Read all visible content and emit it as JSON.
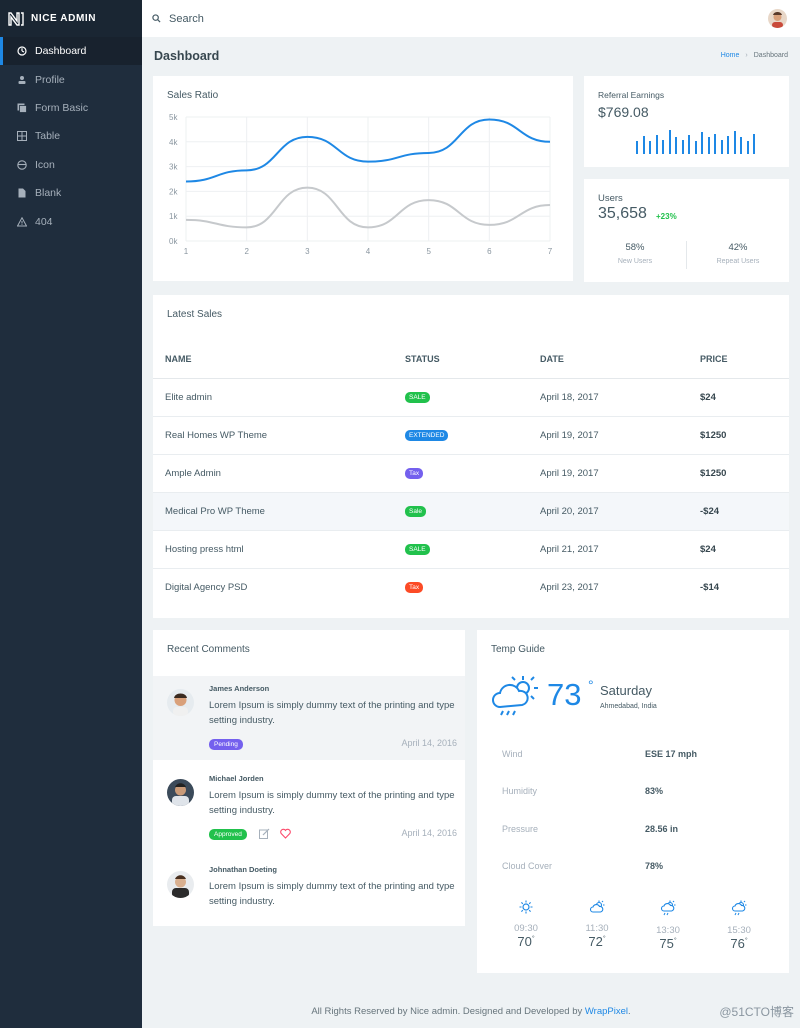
{
  "brand": {
    "name": "NICE ADMIN"
  },
  "sidebar": {
    "items": [
      {
        "label": "Dashboard",
        "icon": "dashboard-icon"
      },
      {
        "label": "Profile",
        "icon": "profile-icon"
      },
      {
        "label": "Form Basic",
        "icon": "form-icon"
      },
      {
        "label": "Table",
        "icon": "table-icon"
      },
      {
        "label": "Icon",
        "icon": "smile-icon"
      },
      {
        "label": "Blank",
        "icon": "document-icon"
      },
      {
        "label": "404",
        "icon": "warning-icon"
      }
    ]
  },
  "topbar": {
    "search_placeholder": "Search"
  },
  "page": {
    "title": "Dashboard",
    "breadcrumb_home": "Home",
    "breadcrumb_current": "Dashboard"
  },
  "sales_ratio": {
    "title": "Sales Ratio"
  },
  "chart_data": {
    "type": "line",
    "x": [
      1,
      2,
      3,
      4,
      5,
      6,
      7
    ],
    "ylim": [
      0,
      5000
    ],
    "y_ticks": [
      "0k",
      "1k",
      "2k",
      "3k",
      "4k",
      "5k"
    ],
    "grid": true,
    "series": [
      {
        "values": [
          2400,
          2850,
          4200,
          3200,
          3550,
          4900,
          4000
        ],
        "color": "#1e88e5"
      },
      {
        "values": [
          850,
          550,
          2150,
          550,
          1650,
          650,
          1450
        ],
        "color": "#c6c9cc"
      }
    ]
  },
  "referral": {
    "label": "Referral Earnings",
    "value": "$769.08",
    "bars": [
      0.55,
      0.75,
      0.55,
      0.8,
      0.6,
      1.0,
      0.7,
      0.6,
      0.8,
      0.55,
      0.9,
      0.7,
      0.85,
      0.6,
      0.75,
      0.95,
      0.7,
      0.55,
      0.85
    ]
  },
  "users": {
    "label": "Users",
    "value": "35,658",
    "delta": "+23%",
    "new_pct": "58%",
    "new_label": "New Users",
    "repeat_pct": "42%",
    "repeat_label": "Repeat Users"
  },
  "latest_sales": {
    "title": "Latest Sales",
    "columns": [
      "NAME",
      "STATUS",
      "DATE",
      "PRICE"
    ],
    "rows": [
      {
        "name": "Elite admin",
        "status": "SALE",
        "status_color": "#21c14c",
        "date": "April 18, 2017",
        "price": "$24"
      },
      {
        "name": "Real Homes WP Theme",
        "status": "EXTENDED",
        "status_color": "#1e88e5",
        "date": "April 19, 2017",
        "price": "$1250"
      },
      {
        "name": "Ample Admin",
        "status": "Tax",
        "status_color": "#7460ee",
        "date": "April 19, 2017",
        "price": "$1250"
      },
      {
        "name": "Medical Pro WP Theme",
        "status": "Sale",
        "status_color": "#21c14c",
        "date": "April 20, 2017",
        "price": "-$24"
      },
      {
        "name": "Hosting press html",
        "status": "SALE",
        "status_color": "#21c14c",
        "date": "April 21, 2017",
        "price": "$24"
      },
      {
        "name": "Digital Agency PSD",
        "status": "Tax",
        "status_color": "#fc4b26",
        "date": "April 23, 2017",
        "price": "-$14"
      }
    ]
  },
  "comments": {
    "title": "Recent Comments",
    "items": [
      {
        "name": "James Anderson",
        "text": "Lorem Ipsum is simply dummy text of the printing and type setting industry.",
        "tag": "Pending",
        "tag_color": "#7460ee",
        "date": "April 14, 2016"
      },
      {
        "name": "Michael Jorden",
        "text": "Lorem Ipsum is simply dummy text of the printing and type setting industry.",
        "tag": "Approved",
        "tag_color": "#21c14c",
        "date": "April 14, 2016"
      },
      {
        "name": "Johnathan Doeting",
        "text": "Lorem Ipsum is simply dummy text of the printing and type setting industry."
      }
    ]
  },
  "weather": {
    "title": "Temp Guide",
    "temp": "73",
    "deg": "°",
    "day": "Saturday",
    "location": "Ahmedabad, India",
    "details": [
      {
        "key": "Wind",
        "value": "ESE 17 mph"
      },
      {
        "key": "Humidity",
        "value": "83%"
      },
      {
        "key": "Pressure",
        "value": "28.56 in"
      },
      {
        "key": "Cloud Cover",
        "value": "78%"
      }
    ],
    "forecast": [
      {
        "time": "09:30",
        "temp": "70",
        "icon": "sun-icon"
      },
      {
        "time": "11:30",
        "temp": "72",
        "icon": "cloud-sun-icon"
      },
      {
        "time": "13:30",
        "temp": "75",
        "icon": "rain-sun-icon"
      },
      {
        "time": "15:30",
        "temp": "76",
        "icon": "rain-sun-icon"
      }
    ]
  },
  "footer": {
    "text": "All Rights Reserved by Nice admin. Designed and Developed by ",
    "link": "WrapPixel",
    "end": "."
  },
  "watermark": "@51CTO博客"
}
